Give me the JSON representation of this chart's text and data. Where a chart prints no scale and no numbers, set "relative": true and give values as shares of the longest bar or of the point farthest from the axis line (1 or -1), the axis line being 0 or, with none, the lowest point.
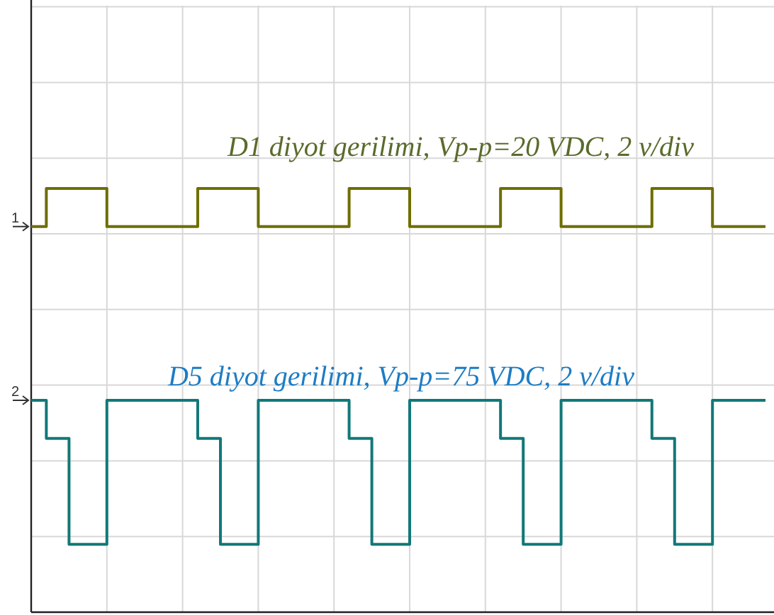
{
  "chart_data": {
    "type": "step",
    "relative": true,
    "grid": true,
    "line_style": "solid",
    "categories": [
      null,
      null,
      null,
      null,
      null,
      null,
      null,
      null,
      null,
      null,
      null,
      null,
      null,
      null,
      null,
      null,
      null,
      null,
      null,
      null,
      null,
      null,
      null,
      null,
      null,
      null,
      null,
      null,
      null,
      null,
      null,
      null,
      null,
      null,
      null,
      null,
      null,
      null,
      null,
      null,
      null,
      null,
      null,
      null,
      null,
      null,
      null,
      null,
      null,
      null,
      null,
      null,
      null,
      null,
      null,
      null,
      null,
      null,
      null,
      null,
      null,
      null,
      null,
      null,
      null,
      null,
      null,
      null,
      null,
      null,
      null,
      null,
      null,
      null,
      null,
      null,
      null,
      null,
      null,
      null,
      null,
      null,
      null,
      null,
      null,
      null,
      null,
      null,
      null,
      null,
      null,
      null,
      null,
      null,
      null,
      null,
      null,
      null
    ],
    "series": [
      {
        "name": "1",
        "color": "#6e6e00",
        "values": [
          0.91,
          0.91,
          1,
          1,
          1,
          1,
          1,
          1,
          1,
          1,
          0.91,
          0.91,
          0.91,
          0.91,
          0.91,
          0.91,
          0.91,
          0.91,
          0.91,
          0.91,
          0.91,
          0.91,
          1,
          1,
          1,
          1,
          1,
          1,
          1,
          1,
          0.91,
          0.91,
          0.91,
          0.91,
          0.91,
          0.91,
          0.91,
          0.91,
          0.91,
          0.91,
          0.91,
          0.91,
          1,
          1,
          1,
          1,
          1,
          1,
          1,
          1,
          0.91,
          0.91,
          0.91,
          0.91,
          0.91,
          0.91,
          0.91,
          0.91,
          0.91,
          0.91,
          0.91,
          0.91,
          1,
          1,
          1,
          1,
          1,
          1,
          1,
          1,
          0.91,
          0.91,
          0.91,
          0.91,
          0.91,
          0.91,
          0.91,
          0.91,
          0.91,
          0.91,
          0.91,
          0.91,
          1,
          1,
          1,
          1,
          1,
          1,
          1,
          1,
          0.91,
          0.91,
          0.91,
          0.91,
          0.91,
          0.91,
          0.91,
          0.91
        ]
      },
      {
        "name": "2",
        "color": "#127878",
        "values": [
          0.5,
          0.5,
          0.41,
          0.41,
          0.41,
          0.16,
          0.16,
          0.16,
          0.16,
          0.16,
          0.5,
          0.5,
          0.5,
          0.5,
          0.5,
          0.5,
          0.5,
          0.5,
          0.5,
          0.5,
          0.5,
          0.5,
          0.41,
          0.41,
          0.41,
          0.16,
          0.16,
          0.16,
          0.16,
          0.16,
          0.5,
          0.5,
          0.5,
          0.5,
          0.5,
          0.5,
          0.5,
          0.5,
          0.5,
          0.5,
          0.5,
          0.5,
          0.41,
          0.41,
          0.41,
          0.16,
          0.16,
          0.16,
          0.16,
          0.16,
          0.5,
          0.5,
          0.5,
          0.5,
          0.5,
          0.5,
          0.5,
          0.5,
          0.5,
          0.5,
          0.5,
          0.5,
          0.41,
          0.41,
          0.41,
          0.16,
          0.16,
          0.16,
          0.16,
          0.16,
          0.5,
          0.5,
          0.5,
          0.5,
          0.5,
          0.5,
          0.5,
          0.5,
          0.5,
          0.5,
          0.5,
          0.5,
          0.41,
          0.41,
          0.41,
          0.16,
          0.16,
          0.16,
          0.16,
          0.16,
          0.5,
          0.5,
          0.5,
          0.5,
          0.5,
          0.5,
          0.5,
          0.5
        ]
      }
    ],
    "annotations": [
      "D1 diyot gerilimi, Vp-p=20 VDC, 2 v/div",
      "D5 diyot gerilimi, Vp-p=75 VDC, 2 v/div"
    ]
  }
}
